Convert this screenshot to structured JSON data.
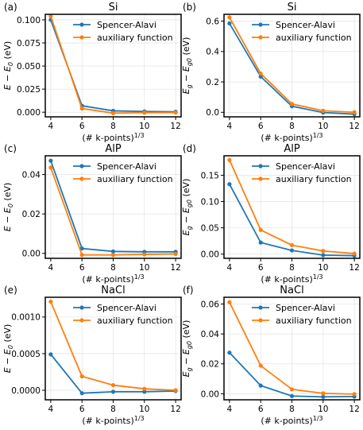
{
  "chart_data": [
    {
      "type": "line",
      "panel_label": "(a)",
      "title": "Si",
      "ylabel_main": "E − E",
      "ylabel_sub": "0",
      "ylabel_tail": " (eV)",
      "xlabel": "(# k-points)",
      "xlabel_sup": "1/3",
      "x": [
        4,
        6,
        8,
        10,
        12
      ],
      "xticks": [
        "4",
        "6",
        "8",
        "10",
        "12"
      ],
      "ylim": [
        -0.005,
        0.106
      ],
      "yticks": [
        0,
        0.025,
        0.05,
        0.075,
        0.1
      ],
      "ytick_labels": [
        "0.000",
        "0.025",
        "0.050",
        "0.075",
        "0.100"
      ],
      "grid": true,
      "legend": "upper-right",
      "series": [
        {
          "name": "Spencer-Alavi",
          "color": "#1f77b4",
          "values": [
            0.1,
            0.007,
            0.0015,
            0.0008,
            0.0005
          ]
        },
        {
          "name": "auxiliary function",
          "color": "#ff7f0e",
          "values": [
            0.104,
            0.004,
            -0.001,
            -0.0005,
            -0.0003
          ]
        }
      ]
    },
    {
      "type": "line",
      "panel_label": "(b)",
      "title": "Si",
      "ylabel_main": "E",
      "ylabel_sub": "g",
      "ylabel_mid": " − E",
      "ylabel_sub2": "g0",
      "ylabel_tail": " (eV)",
      "xlabel": "(# k-points)",
      "xlabel_sup": "1/3",
      "x": [
        4,
        6,
        8,
        10,
        12
      ],
      "xticks": [
        "4",
        "6",
        "8",
        "10",
        "12"
      ],
      "ylim": [
        -0.03,
        0.645
      ],
      "yticks": [
        0,
        0.2,
        0.4,
        0.6
      ],
      "ytick_labels": [
        "0.0",
        "0.2",
        "0.4",
        "0.6"
      ],
      "grid": true,
      "legend": "upper-right",
      "series": [
        {
          "name": "Spencer-Alavi",
          "color": "#1f77b4",
          "values": [
            0.585,
            0.235,
            0.04,
            -0.002,
            -0.012
          ]
        },
        {
          "name": "auxiliary function",
          "color": "#ff7f0e",
          "values": [
            0.625,
            0.255,
            0.055,
            0.01,
            0.0
          ]
        }
      ]
    },
    {
      "type": "line",
      "panel_label": "(c)",
      "title": "AlP",
      "ylabel_main": "E − E",
      "ylabel_sub": "0",
      "ylabel_tail": " (eV)",
      "xlabel": "(# k-points)",
      "xlabel_sup": "1/3",
      "x": [
        4,
        6,
        8,
        10,
        12
      ],
      "xticks": [
        "4",
        "6",
        "8",
        "10",
        "12"
      ],
      "ylim": [
        -0.0025,
        0.0495
      ],
      "yticks": [
        0,
        0.02,
        0.04
      ],
      "ytick_labels": [
        "0.00",
        "0.02",
        "0.04"
      ],
      "grid": true,
      "legend": "upper-right",
      "series": [
        {
          "name": "Spencer-Alavi",
          "color": "#1f77b4",
          "values": [
            0.047,
            0.0025,
            0.001,
            0.0008,
            0.0008
          ]
        },
        {
          "name": "auxiliary function",
          "color": "#ff7f0e",
          "values": [
            0.0435,
            -0.0008,
            -0.0008,
            -0.0005,
            -0.0003
          ]
        }
      ]
    },
    {
      "type": "line",
      "panel_label": "(d)",
      "title": "AlP",
      "ylabel_main": "E",
      "ylabel_sub": "g",
      "ylabel_mid": " − E",
      "ylabel_sub2": "g0",
      "ylabel_tail": " (eV)",
      "xlabel": "(# k-points)",
      "xlabel_sup": "1/3",
      "x": [
        4,
        6,
        8,
        10,
        12
      ],
      "xticks": [
        "4",
        "6",
        "8",
        "10",
        "12"
      ],
      "ylim": [
        -0.008,
        0.187
      ],
      "yticks": [
        0,
        0.05,
        0.1,
        0.15
      ],
      "ytick_labels": [
        "0.00",
        "0.05",
        "0.10",
        "0.15"
      ],
      "grid": true,
      "legend": "upper-right",
      "series": [
        {
          "name": "Spencer-Alavi",
          "color": "#1f77b4",
          "values": [
            0.133,
            0.022,
            0.007,
            -0.002,
            -0.003
          ]
        },
        {
          "name": "auxiliary function",
          "color": "#ff7f0e",
          "values": [
            0.179,
            0.046,
            0.017,
            0.006,
            0.001
          ]
        }
      ]
    },
    {
      "type": "line",
      "panel_label": "(e)",
      "title": "NaCl",
      "ylabel_main": "E − E",
      "ylabel_sub": "0",
      "ylabel_tail": " (eV)",
      "xlabel": "(# k-points)",
      "xlabel_sup": "1/3",
      "x": [
        4,
        6,
        8,
        10,
        12
      ],
      "xticks": [
        "4",
        "6",
        "8",
        "10",
        "12"
      ],
      "ylim": [
        -0.00013,
        0.00127
      ],
      "yticks": [
        0,
        0.0005,
        0.001
      ],
      "ytick_labels": [
        "0.0000",
        "0.0005",
        "0.0010"
      ],
      "grid": true,
      "legend": "upper-right",
      "series": [
        {
          "name": "Spencer-Alavi",
          "color": "#1f77b4",
          "values": [
            0.00049,
            -4e-05,
            -2e-05,
            -2e-05,
            -1e-05
          ]
        },
        {
          "name": "auxiliary function",
          "color": "#ff7f0e",
          "values": [
            0.00121,
            0.00019,
            7e-05,
            2e-05,
            0.0
          ]
        }
      ]
    },
    {
      "type": "line",
      "panel_label": "(f)",
      "title": "NaCl",
      "ylabel_main": "E",
      "ylabel_sub": "g",
      "ylabel_mid": " − E",
      "ylabel_sub2": "g0",
      "ylabel_tail": " (eV)",
      "xlabel": "(# k-points)",
      "xlabel_sup": "1/3",
      "x": [
        4,
        6,
        8,
        10,
        12
      ],
      "xticks": [
        "4",
        "6",
        "8",
        "10",
        "12"
      ],
      "ylim": [
        -0.004,
        0.0645
      ],
      "yticks": [
        0,
        0.02,
        0.04,
        0.06
      ],
      "ytick_labels": [
        "0.00",
        "0.02",
        "0.04",
        "0.06"
      ],
      "grid": true,
      "legend": "upper-right",
      "series": [
        {
          "name": "Spencer-Alavi",
          "color": "#1f77b4",
          "values": [
            0.0275,
            0.0055,
            -0.0015,
            -0.002,
            -0.0018
          ]
        },
        {
          "name": "auxiliary function",
          "color": "#ff7f0e",
          "values": [
            0.0612,
            0.0188,
            0.003,
            0.0003,
            -0.0002
          ]
        }
      ]
    }
  ]
}
